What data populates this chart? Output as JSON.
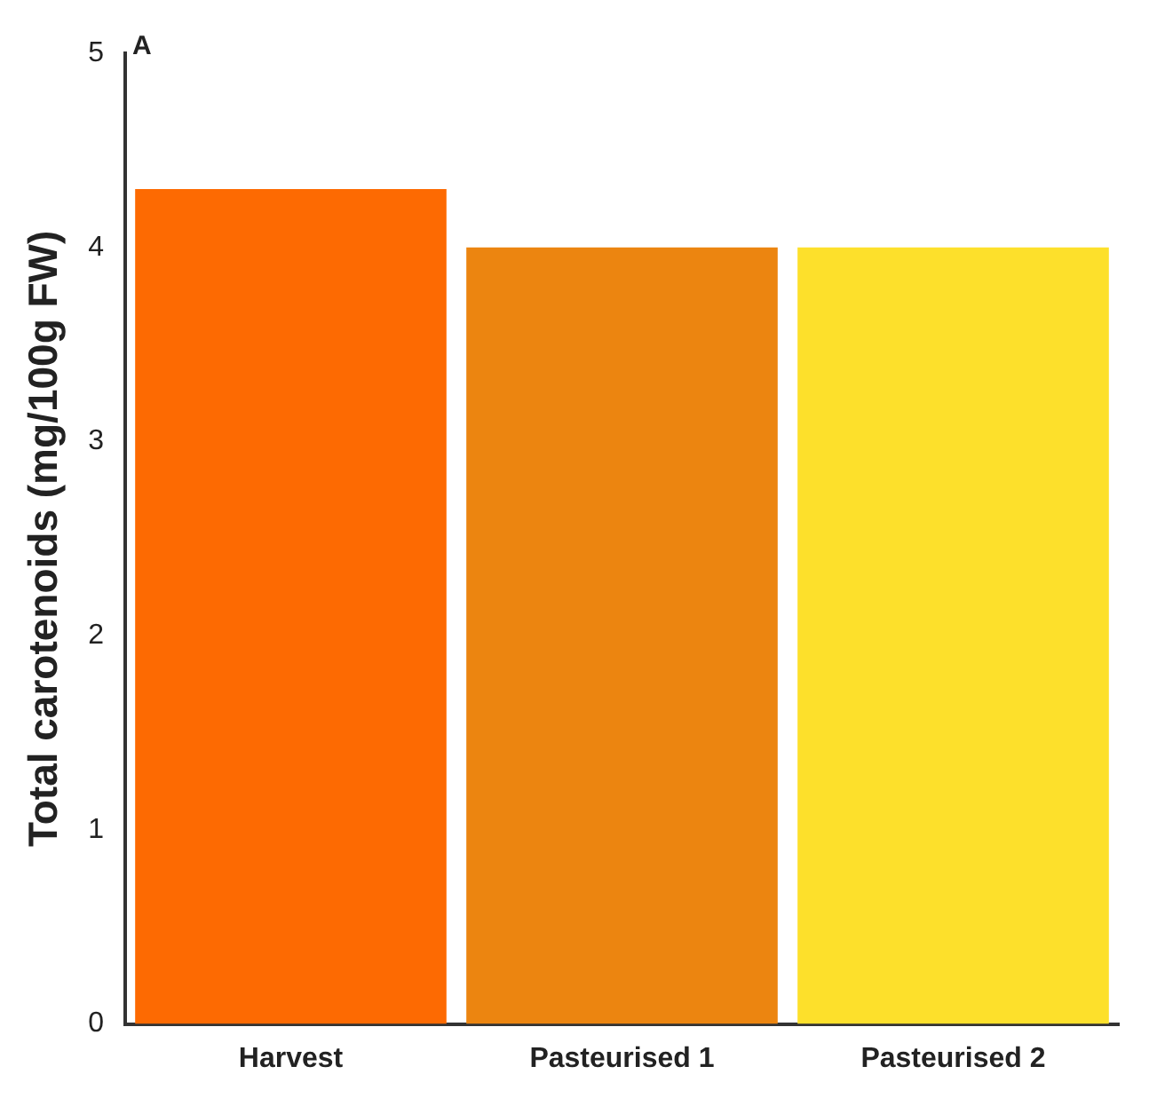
{
  "chart_data": {
    "type": "bar",
    "ylabel": "Total carotenoids (mg/100g FW)",
    "categories": [
      "Harvest",
      "Pasteurised 1",
      "Pasteurised 2"
    ],
    "values": [
      4.3,
      4.0,
      4.0
    ],
    "colors": [
      "#fd6a02",
      "#ec8510",
      "#fde02b"
    ],
    "ylim": [
      0,
      5
    ],
    "yticks": [
      0,
      1,
      2,
      3,
      4,
      5
    ],
    "grid": false,
    "legend": false,
    "annotations": [
      "A"
    ]
  }
}
